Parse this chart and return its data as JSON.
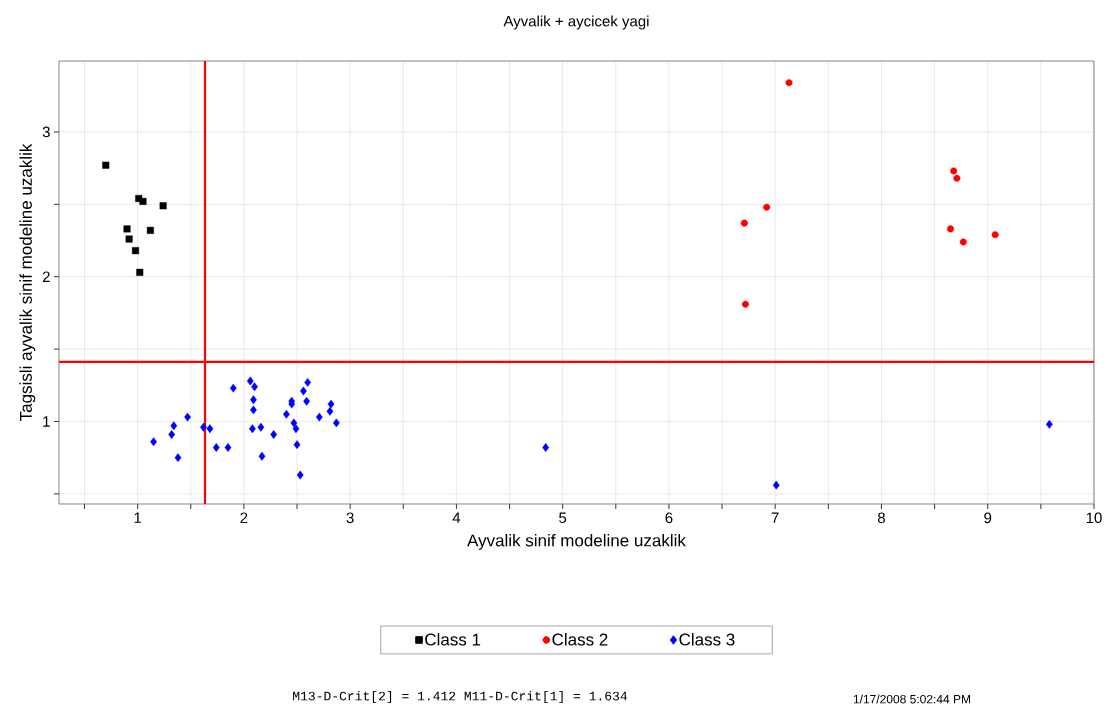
{
  "chart_data": {
    "type": "scatter",
    "title": "Ayvalik + aycicek yagi",
    "xlabel": "Ayvalik sinif modeline uzaklik",
    "ylabel": "Tagsisli ayvalik sinif modeline uzaklik",
    "xlim": [
      0.26,
      10
    ],
    "ylim": [
      0.43,
      3.49
    ],
    "xticks": [
      {
        "value": 0.5,
        "label": null
      },
      1,
      {
        "value": 1.5,
        "label": null
      },
      2,
      {
        "value": 2.5,
        "label": null
      },
      3,
      {
        "value": 3.5,
        "label": null
      },
      4,
      {
        "value": 4.5,
        "label": null
      },
      5,
      {
        "value": 5.5,
        "label": null
      },
      6,
      {
        "value": 6.5,
        "label": null
      },
      7,
      {
        "value": 7.5,
        "label": null
      },
      8,
      {
        "value": 8.5,
        "label": null
      },
      9,
      {
        "value": 9.5,
        "label": null
      },
      10
    ],
    "yticks": [
      {
        "value": 0.5,
        "label": null
      },
      1,
      {
        "value": 1.5,
        "label": null
      },
      2,
      {
        "value": 2.5,
        "label": null
      },
      3
    ],
    "grid": true,
    "legend": "bottom",
    "series": [
      {
        "name": "Class 1",
        "color": "#000000",
        "marker": "square",
        "x": [
          0.7,
          1.01,
          1.05,
          1.24,
          0.9,
          1.12,
          0.92,
          0.98,
          1.02
        ],
        "values": [
          2.77,
          2.54,
          2.52,
          2.49,
          2.33,
          2.32,
          2.26,
          2.18,
          2.03
        ]
      },
      {
        "name": "Class 2",
        "color": "#ff0000",
        "marker": "circle",
        "x": [
          7.13,
          8.68,
          8.71,
          6.92,
          6.71,
          8.65,
          9.07,
          8.77,
          6.72
        ],
        "values": [
          3.34,
          2.73,
          2.68,
          2.48,
          2.37,
          2.33,
          2.29,
          2.24,
          1.81
        ]
      },
      {
        "name": "Class 3",
        "color": "#0000ff",
        "marker": "diamond",
        "x": [
          1.15,
          1.34,
          1.32,
          1.38,
          1.47,
          1.62,
          1.68,
          1.74,
          1.85,
          1.9,
          2.06,
          2.1,
          2.09,
          2.09,
          2.08,
          2.16,
          2.17,
          2.28,
          2.4,
          2.45,
          2.45,
          2.47,
          2.49,
          2.5,
          2.53,
          2.56,
          2.6,
          2.59,
          2.71,
          2.82,
          2.81,
          2.87,
          4.84,
          7.01,
          9.58
        ],
        "values": [
          0.86,
          0.97,
          0.91,
          0.75,
          1.03,
          0.96,
          0.95,
          0.82,
          0.82,
          1.23,
          1.28,
          1.24,
          1.15,
          1.08,
          0.95,
          0.96,
          0.76,
          0.91,
          1.05,
          1.14,
          1.12,
          0.99,
          0.95,
          0.84,
          0.63,
          1.21,
          1.27,
          1.14,
          1.03,
          1.12,
          1.07,
          0.99,
          0.82,
          0.56,
          0.98
        ]
      }
    ],
    "ref_lines": [
      {
        "axis": "x",
        "value": 1.634,
        "color": "#ff0000"
      },
      {
        "axis": "y",
        "value": 1.412,
        "color": "#ff0000"
      }
    ],
    "annotations": [
      "M13-D-Crit[2] = 1.412 M11-D-Crit[1] = 1.634",
      "1/17/2008 5:02:44 PM"
    ]
  }
}
